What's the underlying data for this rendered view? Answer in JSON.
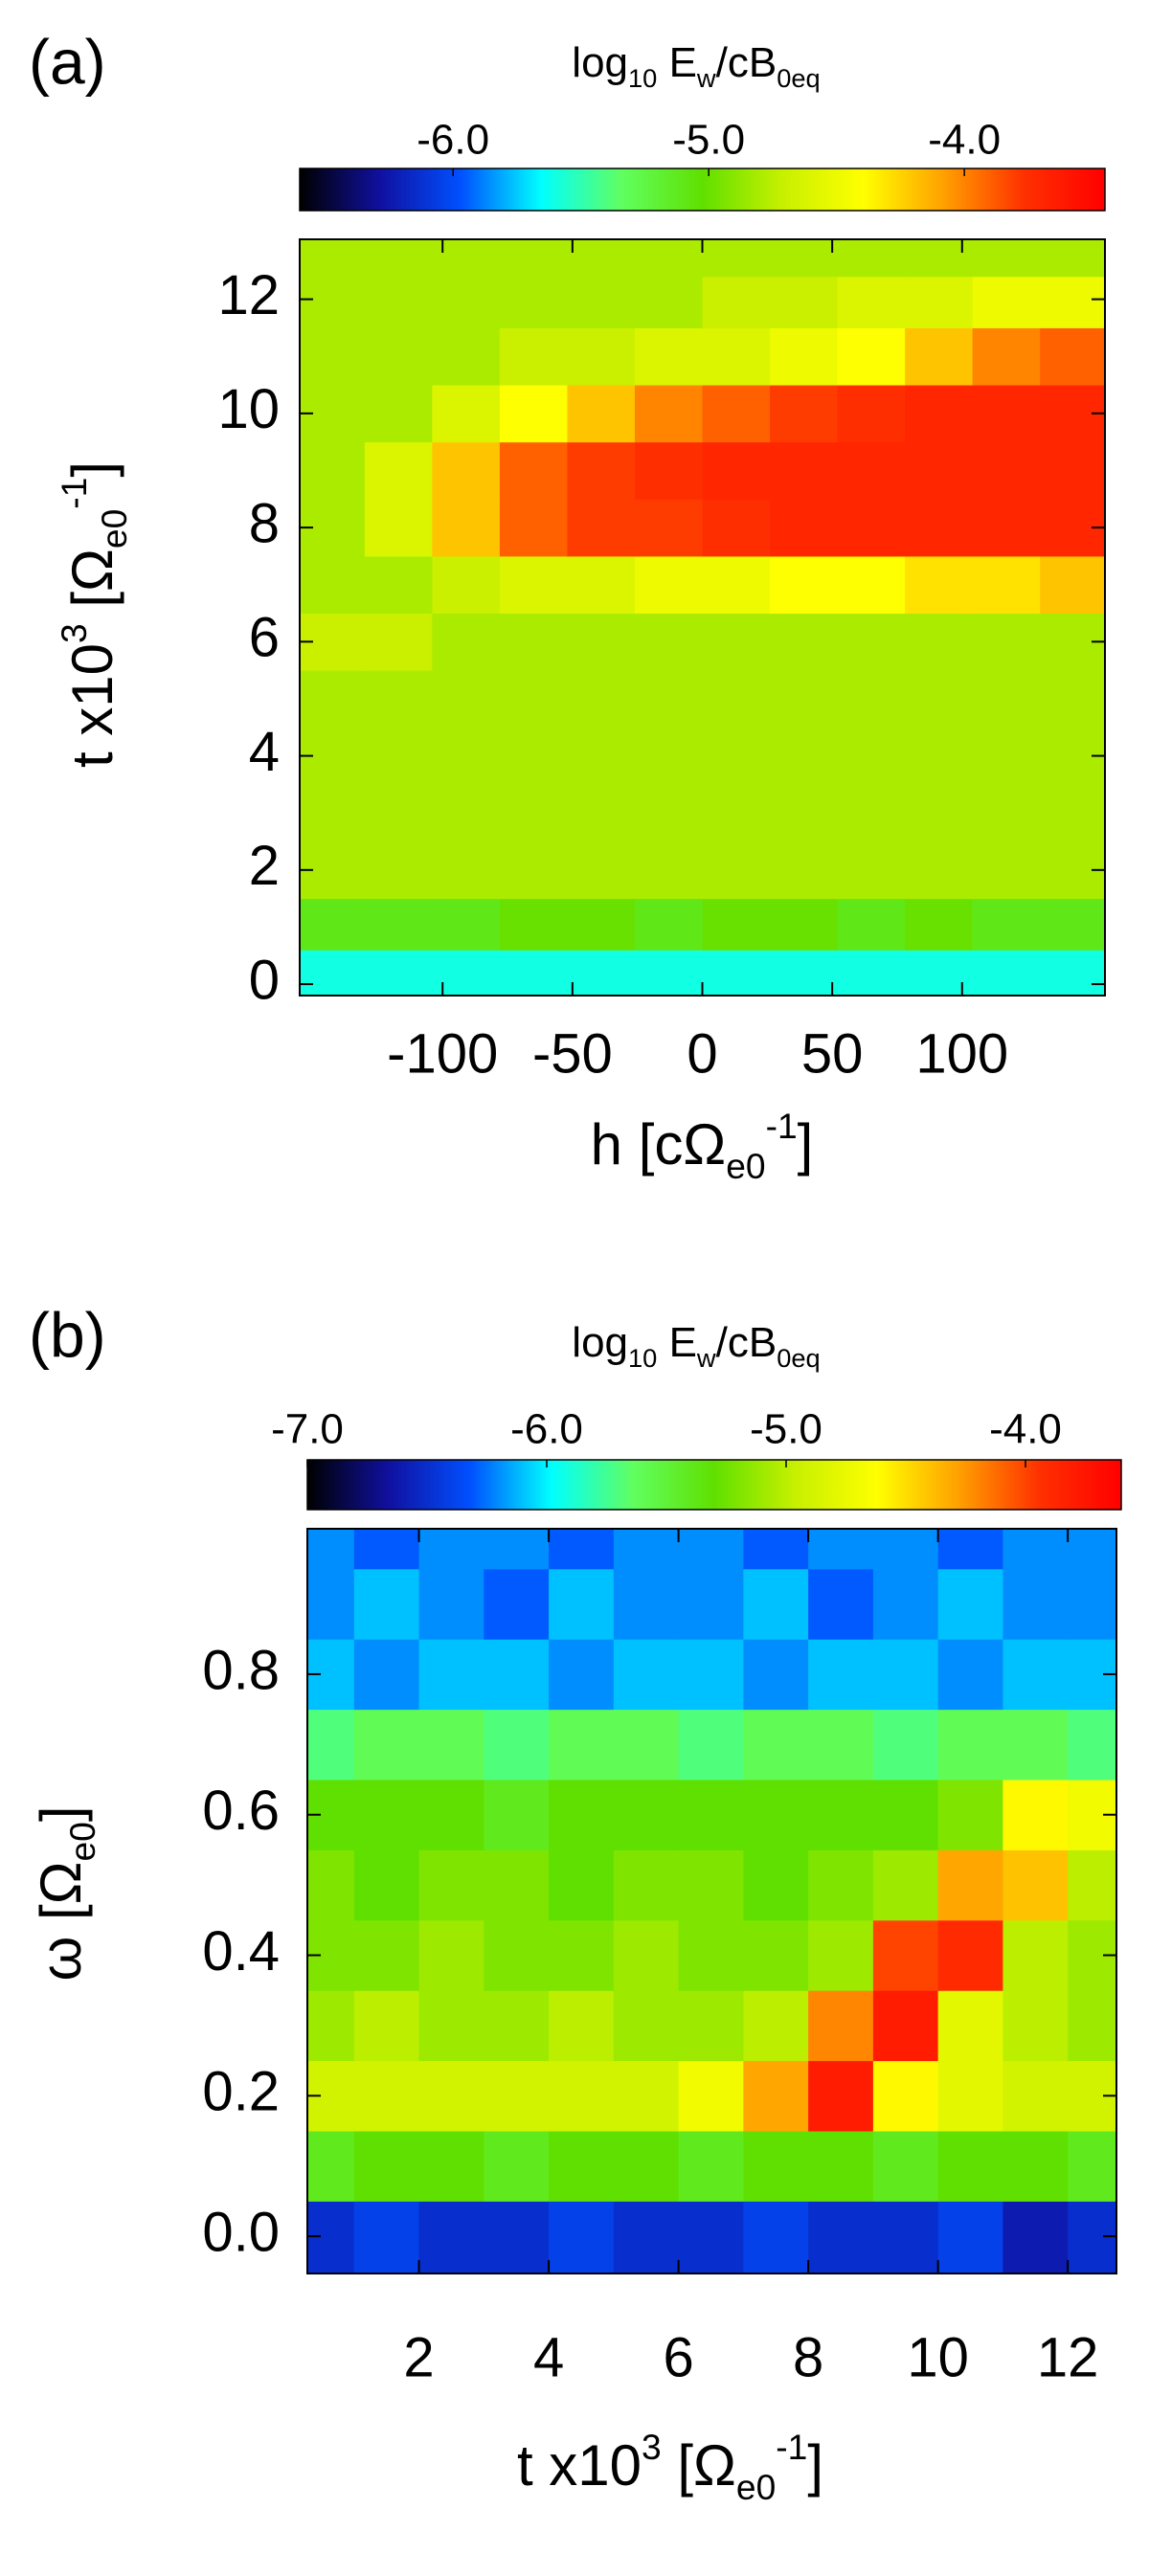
{
  "chart_data": [
    {
      "type": "heatmap",
      "panel_label": "(a)",
      "colorbar": {
        "title": [
          {
            "text": "log"
          },
          {
            "text": "10",
            "sub": true
          },
          {
            "text": " E"
          },
          {
            "text": "w",
            "sub": true
          },
          {
            "text": "/cB"
          },
          {
            "text": "0eq",
            "sub": true
          }
        ],
        "lim": [
          -6.6,
          -3.45
        ],
        "ticks": [
          {
            "value": -6,
            "label": "-6.0"
          },
          {
            "value": -5,
            "label": "-5.0"
          },
          {
            "value": -4,
            "label": "-4.0"
          }
        ]
      },
      "colormap": [
        "#000000",
        "#1010a0",
        "#0050ff",
        "#00ffff",
        "#60ff60",
        "#60e000",
        "#c8f000",
        "#ffff00",
        "#ffa000",
        "#ff3000",
        "#ff0000"
      ],
      "xlabel": [
        {
          "text": "h [cΩ"
        },
        {
          "text": "e0",
          "sub": true
        },
        {
          "text": "-1",
          "sup": true
        },
        {
          "text": "]"
        }
      ],
      "ylabel": [
        {
          "text": "t   x10"
        },
        {
          "text": "3",
          "sup": true
        },
        {
          "text": " [Ω"
        },
        {
          "text": "e0",
          "sub": true
        },
        {
          "text": "-1",
          "sup": true
        },
        {
          "text": "]"
        }
      ],
      "xlim": [
        -155,
        155
      ],
      "ylim": [
        -0.2,
        13.05
      ],
      "xticks": [
        -100,
        -50,
        0,
        50,
        100
      ],
      "yticks": [
        0,
        2,
        4,
        6,
        8,
        10,
        12
      ],
      "x": [
        -143,
        -117,
        -91,
        -65,
        -39,
        -13,
        13,
        39,
        65,
        91,
        117,
        143
      ],
      "y": [
        0.2,
        1,
        2,
        3,
        4,
        5,
        6,
        7,
        8,
        9,
        10,
        11,
        12,
        12.8
      ],
      "z": [
        [
          -5.6,
          -5.6,
          -5.6,
          -5.6,
          -5.6,
          -5.6,
          -5.6,
          -5.6,
          -5.6,
          -5.6,
          -5.6,
          -5.6
        ],
        [
          -5.1,
          -5.1,
          -5.1,
          -5.0,
          -5.0,
          -5.1,
          -5.0,
          -5.0,
          -5.1,
          -5.0,
          -5.1,
          -5.1
        ],
        [
          -4.8,
          -4.8,
          -4.8,
          -4.8,
          -4.8,
          -4.8,
          -4.8,
          -4.8,
          -4.8,
          -4.8,
          -4.8,
          -4.8
        ],
        [
          -4.8,
          -4.8,
          -4.8,
          -4.8,
          -4.8,
          -4.8,
          -4.8,
          -4.8,
          -4.8,
          -4.8,
          -4.8,
          -4.8
        ],
        [
          -4.8,
          -4.8,
          -4.8,
          -4.8,
          -4.8,
          -4.8,
          -4.8,
          -4.8,
          -4.8,
          -4.8,
          -4.8,
          -4.8
        ],
        [
          -4.8,
          -4.8,
          -4.8,
          -4.8,
          -4.8,
          -4.8,
          -4.8,
          -4.8,
          -4.8,
          -4.8,
          -4.8,
          -4.8
        ],
        [
          -4.7,
          -4.7,
          -4.8,
          -4.8,
          -4.8,
          -4.8,
          -4.8,
          -4.8,
          -4.8,
          -4.8,
          -4.8,
          -4.8
        ],
        [
          -4.8,
          -4.8,
          -4.7,
          -4.6,
          -4.6,
          -4.5,
          -4.5,
          -4.4,
          -4.4,
          -4.3,
          -4.3,
          -4.2
        ],
        [
          -4.8,
          -4.6,
          -4.2,
          -3.9,
          -3.8,
          -3.8,
          -3.75,
          -3.7,
          -3.7,
          -3.7,
          -3.7,
          -3.7
        ],
        [
          -4.8,
          -4.6,
          -4.2,
          -3.9,
          -3.8,
          -3.75,
          -3.7,
          -3.7,
          -3.7,
          -3.7,
          -3.7,
          -3.7
        ],
        [
          -4.8,
          -4.8,
          -4.6,
          -4.4,
          -4.2,
          -4.0,
          -3.9,
          -3.8,
          -3.75,
          -3.7,
          -3.7,
          -3.7
        ],
        [
          -4.8,
          -4.8,
          -4.8,
          -4.7,
          -4.7,
          -4.6,
          -4.6,
          -4.5,
          -4.4,
          -4.2,
          -4.0,
          -3.9
        ],
        [
          -4.8,
          -4.8,
          -4.8,
          -4.8,
          -4.8,
          -4.8,
          -4.7,
          -4.7,
          -4.6,
          -4.6,
          -4.5,
          -4.5
        ],
        [
          -4.8,
          -4.8,
          -4.8,
          -4.8,
          -4.8,
          -4.8,
          -4.8,
          -4.8,
          -4.8,
          -4.8,
          -4.8,
          -4.8
        ]
      ]
    },
    {
      "type": "heatmap",
      "panel_label": "(b)",
      "colorbar": {
        "title": [
          {
            "text": "log"
          },
          {
            "text": "10",
            "sub": true
          },
          {
            "text": " E"
          },
          {
            "text": "w",
            "sub": true
          },
          {
            "text": "/cB"
          },
          {
            "text": "0eq",
            "sub": true
          }
        ],
        "lim": [
          -7.0,
          -3.6
        ],
        "ticks": [
          {
            "value": -7,
            "label": "-7.0"
          },
          {
            "value": -6,
            "label": "-6.0"
          },
          {
            "value": -5,
            "label": "-5.0"
          },
          {
            "value": -4,
            "label": "-4.0"
          }
        ]
      },
      "colormap": [
        "#000000",
        "#1010a0",
        "#0050ff",
        "#00ffff",
        "#60ff60",
        "#60e000",
        "#c8f000",
        "#ffff00",
        "#ffa000",
        "#ff3000",
        "#ff0000"
      ],
      "xlabel": [
        {
          "text": "t   x10"
        },
        {
          "text": "3",
          "sup": true
        },
        {
          "text": " [Ω"
        },
        {
          "text": "e0",
          "sub": true
        },
        {
          "text": "-1",
          "sup": true
        },
        {
          "text": "]"
        }
      ],
      "ylabel": [
        {
          "text": "ω [Ω"
        },
        {
          "text": "e0",
          "sub": true
        },
        {
          "text": "]"
        }
      ],
      "xlim": [
        0.28,
        12.75
      ],
      "ylim": [
        -0.053,
        1.007
      ],
      "xticks": [
        2,
        4,
        6,
        8,
        10,
        12
      ],
      "yticks": [
        {
          "value": 0,
          "label": "0.0"
        },
        0.2,
        0.4,
        0.6,
        0.8
      ],
      "x": [
        0.5,
        1.5,
        2.5,
        3.5,
        4.5,
        5.5,
        6.5,
        7.5,
        8.5,
        9.5,
        10.5,
        11.5,
        12.5
      ],
      "y": [
        0.0,
        0.1,
        0.2,
        0.3,
        0.4,
        0.5,
        0.6,
        0.7,
        0.8,
        0.9,
        1.0
      ],
      "z": [
        [
          -6.5,
          -6.4,
          -6.5,
          -6.5,
          -6.4,
          -6.5,
          -6.5,
          -6.4,
          -6.5,
          -6.5,
          -6.4,
          -6.6,
          -6.5
        ],
        [
          -5.4,
          -5.3,
          -5.3,
          -5.4,
          -5.3,
          -5.3,
          -5.4,
          -5.3,
          -5.3,
          -5.4,
          -5.3,
          -5.3,
          -5.4
        ],
        [
          -4.9,
          -4.9,
          -4.9,
          -4.9,
          -4.9,
          -4.9,
          -4.7,
          -4.3,
          -3.8,
          -4.6,
          -4.8,
          -4.9,
          -4.9
        ],
        [
          -5.1,
          -5.0,
          -5.1,
          -5.1,
          -5.0,
          -5.1,
          -5.1,
          -5.0,
          -4.2,
          -3.8,
          -4.8,
          -5.0,
          -5.1
        ],
        [
          -5.2,
          -5.2,
          -5.1,
          -5.2,
          -5.2,
          -5.1,
          -5.2,
          -5.2,
          -5.1,
          -4.0,
          -3.9,
          -5.0,
          -5.1
        ],
        [
          -5.2,
          -5.3,
          -5.2,
          -5.2,
          -5.3,
          -5.2,
          -5.2,
          -5.3,
          -5.2,
          -5.1,
          -4.3,
          -4.4,
          -5.0
        ],
        [
          -5.3,
          -5.3,
          -5.3,
          -5.4,
          -5.3,
          -5.3,
          -5.3,
          -5.3,
          -5.3,
          -5.3,
          -5.2,
          -4.6,
          -4.7
        ],
        [
          -5.7,
          -5.6,
          -5.6,
          -5.7,
          -5.6,
          -5.6,
          -5.7,
          -5.6,
          -5.6,
          -5.7,
          -5.6,
          -5.6,
          -5.7
        ],
        [
          -6.1,
          -6.2,
          -6.1,
          -6.1,
          -6.2,
          -6.1,
          -6.1,
          -6.2,
          -6.1,
          -6.1,
          -6.2,
          -6.1,
          -6.1
        ],
        [
          -6.2,
          -6.1,
          -6.2,
          -6.3,
          -6.1,
          -6.2,
          -6.2,
          -6.1,
          -6.3,
          -6.2,
          -6.1,
          -6.2,
          -6.2
        ],
        [
          -6.2,
          -6.3,
          -6.2,
          -6.2,
          -6.3,
          -6.2,
          -6.2,
          -6.3,
          -6.2,
          -6.2,
          -6.3,
          -6.2,
          -6.2
        ]
      ]
    }
  ]
}
